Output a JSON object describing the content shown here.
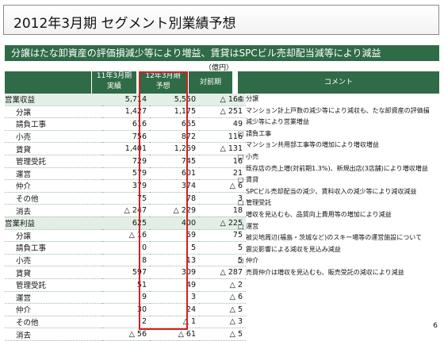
{
  "title": "2012年3月期 セグメント別業績予想",
  "banner": "分譲はたな卸資産の評価損減少等により増益、賃貸はSPCビル売却配当減等により減益",
  "unit": "（億円）",
  "columns": {
    "fy11_l1": "11年3月期",
    "fy11_l2": "実績",
    "fy12_l1": "12年3月期",
    "fy12_l2": "予想",
    "yoy": "対前期",
    "comment": "コメント"
  },
  "rows": [
    {
      "label": "営業収益",
      "fy11": "5,714",
      "fy12": "5,550",
      "yoy": "△ 164",
      "section": true
    },
    {
      "label": "分譲",
      "fy11": "1,427",
      "fy12": "1,175",
      "yoy": "△ 251"
    },
    {
      "label": "請負工事",
      "fy11": "616",
      "fy12": "665",
      "yoy": "49"
    },
    {
      "label": "小売",
      "fy11": "756",
      "fy12": "872",
      "yoy": "116"
    },
    {
      "label": "賃貸",
      "fy11": "1,401",
      "fy12": "1,269",
      "yoy": "△ 131"
    },
    {
      "label": "管理受託",
      "fy11": "729",
      "fy12": "745",
      "yoy": "16"
    },
    {
      "label": "運営",
      "fy11": "579",
      "fy12": "601",
      "yoy": "21"
    },
    {
      "label": "仲介",
      "fy11": "379",
      "fy12": "374",
      "yoy": "△ 6"
    },
    {
      "label": "その他",
      "fy11": "75",
      "fy12": "78",
      "yoy": "3"
    },
    {
      "label": "消去",
      "fy11": "△ 247",
      "fy12": "△ 229",
      "yoy": "18"
    },
    {
      "label": "営業利益",
      "fy11": "625",
      "fy12": "400",
      "yoy": "△ 225",
      "section": true
    },
    {
      "label": "分譲",
      "fy11": "△ 16",
      "fy12": "59",
      "yoy": "75"
    },
    {
      "label": "請負工事",
      "fy11": "0",
      "fy12": "5",
      "yoy": "5"
    },
    {
      "label": "小売",
      "fy11": "8",
      "fy12": "13",
      "yoy": "5"
    },
    {
      "label": "賃貸",
      "fy11": "597",
      "fy12": "309",
      "yoy": "△ 287"
    },
    {
      "label": "管理受託",
      "fy11": "51",
      "fy12": "49",
      "yoy": "△ 2"
    },
    {
      "label": "運営",
      "fy11": "9",
      "fy12": "3",
      "yoy": "△ 6"
    },
    {
      "label": "仲介",
      "fy11": "30",
      "fy12": "24",
      "yoy": "△ 5"
    },
    {
      "label": "その他",
      "fy11": "2",
      "fy12": "△ 1",
      "yoy": "△ 3"
    },
    {
      "label": "消去",
      "fy11": "△ 56",
      "fy12": "△ 61",
      "yoy": "△ 5"
    }
  ],
  "comments": [
    {
      "text": "□ 分譲",
      "head": true
    },
    {
      "text": "マンション計上戸数の減少等により減収も、たな卸資産の評価損"
    },
    {
      "text": "減少等により営業増益"
    },
    {
      "text": "□ 請負工事",
      "head": true
    },
    {
      "text": "マンション共用部工事等の増加により増収増益"
    },
    {
      "text": "□ 小売",
      "head": true
    },
    {
      "text": "既存店の売上増(対前期1.3%)、新規出店(3店舗)により増収増益"
    },
    {
      "text": "□ 賃貸",
      "head": true
    },
    {
      "text": "SPCビル売却配当の減少、賃料収入の減少等により減収減益"
    },
    {
      "text": "□ 管理受託",
      "head": true
    },
    {
      "text": "増収を見込むも、品質向上費用等の増加により減益"
    },
    {
      "text": "□ 運営",
      "head": true
    },
    {
      "text": "被災地周辺(福島・茨城など)のスキー場等の運営施設について"
    },
    {
      "text": "震災影響による減収を見込み減益"
    },
    {
      "text": "□ 仲介",
      "head": true
    },
    {
      "text": "売買仲介は増収を見込むも、販売受託の減収により減益"
    }
  ],
  "page_number": "6"
}
